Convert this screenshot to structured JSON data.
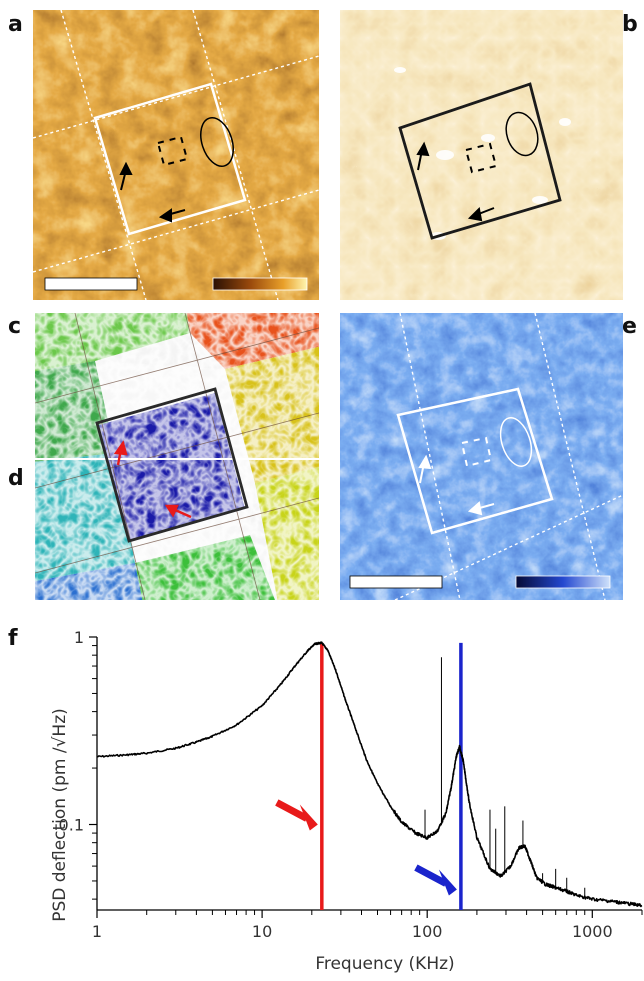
{
  "panels": {
    "a": "a",
    "b": "b",
    "c": "c",
    "d": "d",
    "e": "e",
    "f": "f"
  },
  "colors": {
    "afm_dark": "#3a1a05",
    "afm_mid": "#a8520f",
    "afm_light": "#f7e27a",
    "map_base": "#f2d7a0",
    "map_shadow": "#d39a4e",
    "blue_dark": "#0a1a6e",
    "blue_mid": "#2f63d6",
    "blue_light": "#a9c6f2",
    "red_marker": "#e81a1a",
    "blue_marker": "#1a24cc"
  },
  "chart_data": {
    "type": "line",
    "xlabel": "Frequency (KHz)",
    "ylabel": "PSD deflection (pm /√Hz)",
    "xscale": "log",
    "yscale": "log",
    "xlim": [
      1,
      2000
    ],
    "ylim": [
      0.035,
      1.0
    ],
    "xticks": [
      1,
      10,
      100,
      1000
    ],
    "xtick_labels": [
      "1",
      "10",
      "100",
      "1000"
    ],
    "yticks": [
      0.1,
      1
    ],
    "ytick_labels": [
      "0.1",
      "1"
    ],
    "series": [
      {
        "color": "#000000",
        "x": [
          1,
          1.5,
          2,
          3,
          4,
          5,
          7,
          10,
          13,
          16,
          19,
          21,
          23,
          25,
          28,
          32,
          37,
          43,
          50,
          60,
          70,
          85,
          100,
          115,
          130,
          140,
          150,
          157,
          165,
          180,
          200,
          240,
          280,
          320,
          360,
          390,
          420,
          460,
          520,
          600,
          700,
          800,
          1000,
          1300,
          1600,
          2000
        ],
        "y": [
          0.23,
          0.235,
          0.24,
          0.255,
          0.275,
          0.295,
          0.34,
          0.43,
          0.56,
          0.71,
          0.85,
          0.92,
          0.93,
          0.85,
          0.66,
          0.46,
          0.32,
          0.22,
          0.165,
          0.125,
          0.103,
          0.09,
          0.085,
          0.092,
          0.115,
          0.16,
          0.23,
          0.26,
          0.22,
          0.13,
          0.085,
          0.058,
          0.053,
          0.06,
          0.075,
          0.077,
          0.065,
          0.052,
          0.048,
          0.046,
          0.044,
          0.042,
          0.04,
          0.039,
          0.038,
          0.037
        ]
      }
    ],
    "spikes": [
      {
        "x": 97,
        "y": 0.12
      },
      {
        "x": 122,
        "y": 0.78
      },
      {
        "x": 240,
        "y": 0.12
      },
      {
        "x": 260,
        "y": 0.095
      },
      {
        "x": 295,
        "y": 0.125
      },
      {
        "x": 380,
        "y": 0.105
      },
      {
        "x": 500,
        "y": 0.055
      },
      {
        "x": 600,
        "y": 0.058
      },
      {
        "x": 700,
        "y": 0.052
      },
      {
        "x": 900,
        "y": 0.046
      }
    ],
    "markers": [
      {
        "x": 23,
        "color": "#e81a1a"
      },
      {
        "x": 160,
        "color": "#1a24cc"
      }
    ]
  }
}
